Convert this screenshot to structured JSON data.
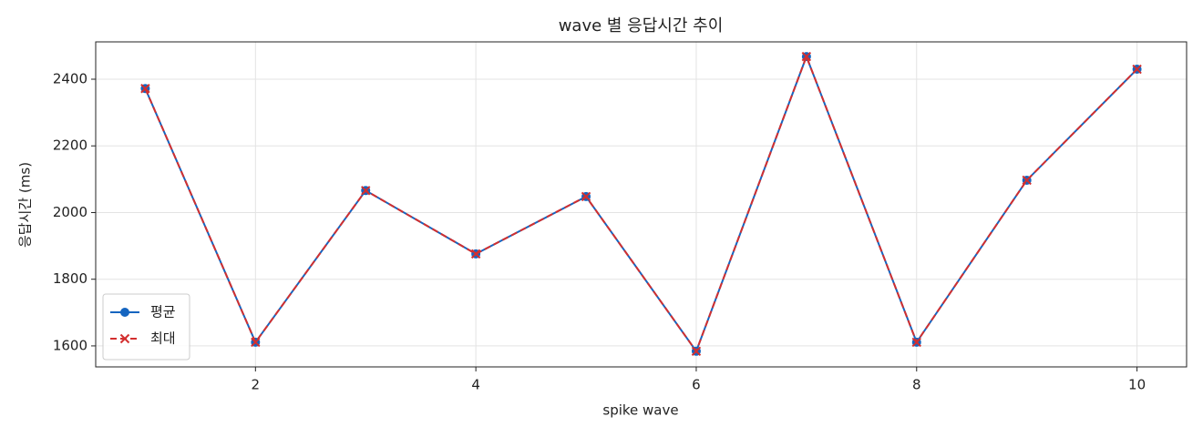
{
  "chart_data": {
    "type": "line",
    "title": "wave 별 응답시간 추이",
    "x_label": "spike wave",
    "y_label": "응답시간 (ms)",
    "x": [
      1,
      2,
      3,
      4,
      5,
      6,
      7,
      8,
      9,
      10
    ],
    "series": [
      {
        "name": "평균",
        "color": "#1565c0",
        "marker": "circle",
        "dash": false,
        "values": [
          2372,
          1611,
          2066,
          1876,
          2048,
          1584,
          2468,
          1611,
          2097,
          2430
        ]
      },
      {
        "name": "최대",
        "color": "#d32f2f",
        "marker": "x",
        "dash": true,
        "values": [
          2372,
          1611,
          2066,
          1876,
          2048,
          1584,
          2468,
          1611,
          2097,
          2430
        ]
      }
    ],
    "xlim": [
      0.55,
      10.45
    ],
    "xticks": [
      2,
      4,
      6,
      8,
      10
    ],
    "ylim": [
      1537,
      2512
    ],
    "yticks": [
      1600,
      1800,
      2000,
      2200,
      2400
    ],
    "grid": true,
    "legend": "lower left"
  }
}
